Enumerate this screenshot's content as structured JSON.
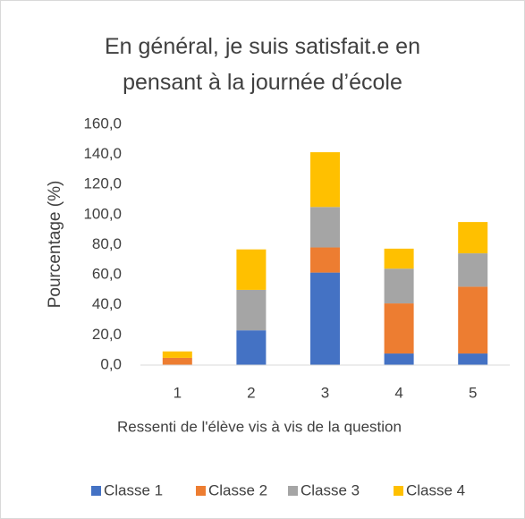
{
  "chart_data": {
    "type": "stacked_bar",
    "title": "En général, je suis satisfait.e en pensant à la journée d’école",
    "x_label": "Ressenti de l'élève vis à vis de la question",
    "y_label": "Pourcentage (%)",
    "categories": [
      "1",
      "2",
      "3",
      "4",
      "5"
    ],
    "series": [
      {
        "name": "Classe 1",
        "color": "#4472c4",
        "values": [
          0,
          23.1,
          61.5,
          7.7,
          7.7
        ]
      },
      {
        "name": "Classe 2",
        "color": "#ed7d31",
        "values": [
          4.8,
          0,
          16.7,
          33.3,
          44.4
        ]
      },
      {
        "name": "Classe 3",
        "color": "#a5a5a5",
        "values": [
          0,
          26.9,
          26.9,
          23.1,
          22.2
        ]
      },
      {
        "name": "Classe 4",
        "color": "#ffc000",
        "values": [
          4.3,
          26.9,
          36.4,
          13.3,
          20.8
        ]
      }
    ],
    "ylim": [
      0,
      160
    ],
    "yticks": [
      {
        "value": 0,
        "label": "0,0"
      },
      {
        "value": 20,
        "label": "20,0"
      },
      {
        "value": 40,
        "label": "40,0"
      },
      {
        "value": 60,
        "label": "60,0"
      },
      {
        "value": 80,
        "label": "80,0"
      },
      {
        "value": 100,
        "label": "100,0"
      },
      {
        "value": 120,
        "label": "120,0"
      },
      {
        "value": 140,
        "label": "140,0"
      },
      {
        "value": 160,
        "label": "160,0"
      }
    ],
    "grid": false,
    "legend": "bottom"
  }
}
